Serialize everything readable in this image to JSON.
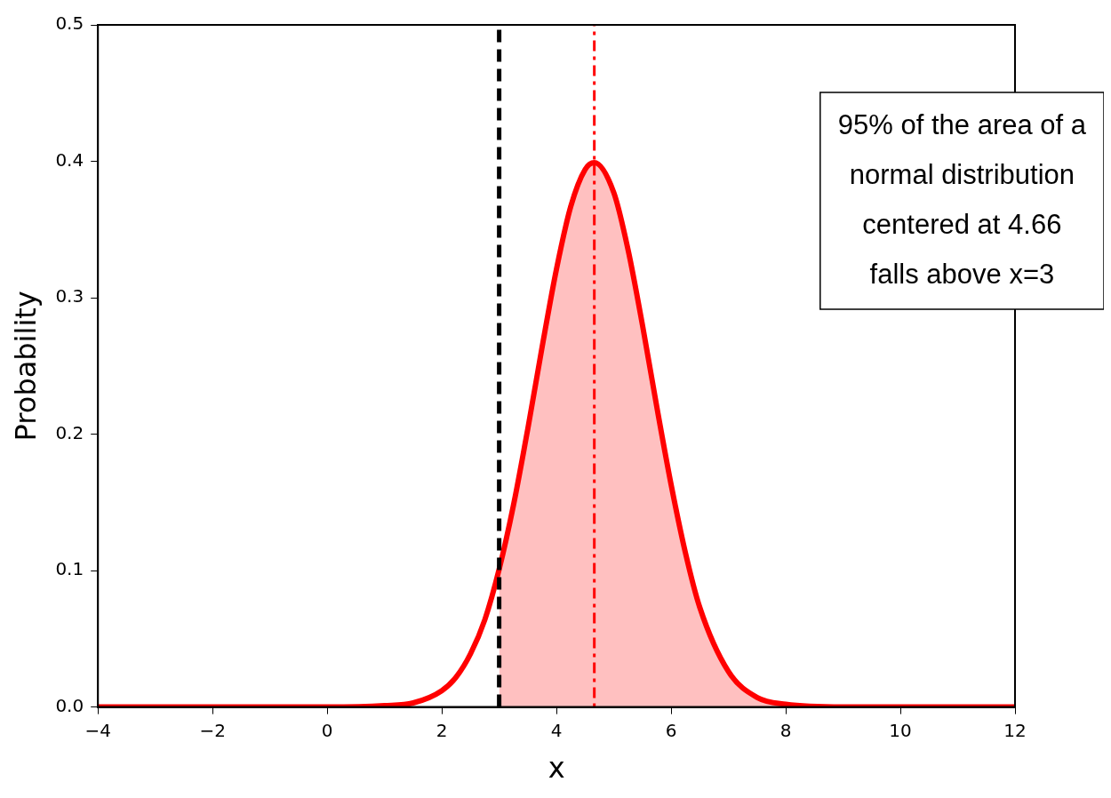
{
  "chart_data": {
    "type": "line",
    "xlabel": "x",
    "ylabel": "Probability",
    "xlim": [
      -4,
      12
    ],
    "ylim": [
      0,
      0.5
    ],
    "xticks": [
      {
        "value": -4,
        "label": "−4"
      },
      {
        "value": -2,
        "label": "−2"
      },
      0,
      2,
      4,
      6,
      8,
      10,
      12
    ],
    "yticks": [
      {
        "value": 0,
        "label": "0.0"
      },
      0.1,
      0.2,
      0.3,
      0.4,
      0.5
    ],
    "grid": false,
    "legend": false,
    "marker": "none",
    "series": [
      {
        "type": "area",
        "color": "#ffc0c0",
        "x": [
          3,
          3.25,
          3.5,
          3.75,
          4,
          4.25,
          4.5,
          4.66,
          5,
          5.25,
          5.5,
          5.75,
          6,
          6.25,
          6.5,
          7,
          7.5,
          8,
          9,
          12
        ],
        "values": [
          0.101,
          0.148,
          0.204,
          0.264,
          0.321,
          0.367,
          0.394,
          0.399,
          0.377,
          0.335,
          0.28,
          0.22,
          0.163,
          0.113,
          0.073,
          0.026,
          0.007,
          0.002,
          0,
          0
        ]
      },
      {
        "type": "line",
        "color": "#ff0000",
        "x": [
          -4,
          0,
          1,
          1.5,
          2,
          2.25,
          2.5,
          2.75,
          3,
          3.25,
          3.5,
          3.75,
          4,
          4.25,
          4.5,
          4.66,
          5,
          5.25,
          5.5,
          5.75,
          6,
          6.25,
          6.5,
          7,
          7.5,
          8,
          9,
          12
        ],
        "values": [
          0,
          0,
          0.001,
          0.003,
          0.012,
          0.022,
          0.039,
          0.064,
          0.101,
          0.148,
          0.204,
          0.264,
          0.321,
          0.367,
          0.394,
          0.399,
          0.377,
          0.335,
          0.28,
          0.22,
          0.163,
          0.113,
          0.073,
          0.026,
          0.007,
          0.002,
          0,
          0
        ]
      }
    ],
    "ref_lines": [
      {
        "axis": "x",
        "value": 3,
        "color": "#000000",
        "line_style": "dashed"
      },
      {
        "axis": "x",
        "value": 4.66,
        "color": "#ff0000",
        "line_style": "dotted"
      }
    ],
    "annotations": [
      "95% of the area of a\nnormal distribution\ncentered at 4.66\nfalls above x=3"
    ]
  }
}
